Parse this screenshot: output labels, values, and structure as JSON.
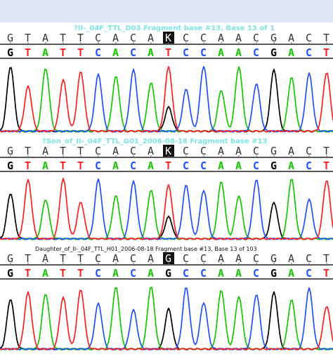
{
  "colors": {
    "A": "#14c800",
    "C": "#2050ff",
    "G": "#000000",
    "T": "#ff2020",
    "background": "#ffffff",
    "title_bar": "#dfe8f4",
    "highlight_bg": "#111111"
  },
  "panels": [
    {
      "header": "?II-_04F_TTL_D03 Fragment base #13, Base 13 of 1",
      "header_color": "#7fe3e6",
      "reference_row": [
        "G",
        "T",
        "A",
        "T",
        "T",
        "C",
        "A",
        "C",
        "A",
        "K",
        "C",
        "C",
        "A",
        "A",
        "C",
        "G",
        "A",
        "C",
        "T"
      ],
      "call_row": [
        "G",
        "T",
        "A",
        "T",
        "T",
        "C",
        "A",
        "C",
        "A",
        "T",
        "C",
        "C",
        "A",
        "A",
        "C",
        "G",
        "A",
        "C",
        "T"
      ],
      "highlighted_index": 9
    },
    {
      "header": "?Son_of_II-_04F_TTL_G01_2006-08-18 Fragment base #13",
      "header_color": "#7fe3e6",
      "reference_row": [
        "G",
        "T",
        "A",
        "T",
        "T",
        "C",
        "A",
        "C",
        "A",
        "K",
        "C",
        "C",
        "A",
        "A",
        "C",
        "G",
        "A",
        "C",
        "T"
      ],
      "call_row": [
        "G",
        "T",
        "A",
        "T",
        "T",
        "C",
        "A",
        "C",
        "A",
        "T",
        "C",
        "C",
        "A",
        "A",
        "C",
        "G",
        "A",
        "C",
        "T"
      ],
      "highlighted_index": 9
    },
    {
      "header": "Daughter_of_II-_04F_TTL_H01_2006-08-18 Fragment base #13, Base 13 of 103",
      "header_color": "#111111",
      "reference_row": [
        "G",
        "T",
        "A",
        "T",
        "T",
        "C",
        "A",
        "C",
        "A",
        "G",
        "C",
        "C",
        "A",
        "A",
        "C",
        "G",
        "A",
        "C",
        "T"
      ],
      "call_row": [
        "G",
        "T",
        "A",
        "T",
        "T",
        "C",
        "A",
        "C",
        "A",
        "G",
        "C",
        "C",
        "A",
        "A",
        "C",
        "G",
        "A",
        "C",
        "T"
      ],
      "highlighted_index": 9
    }
  ]
}
